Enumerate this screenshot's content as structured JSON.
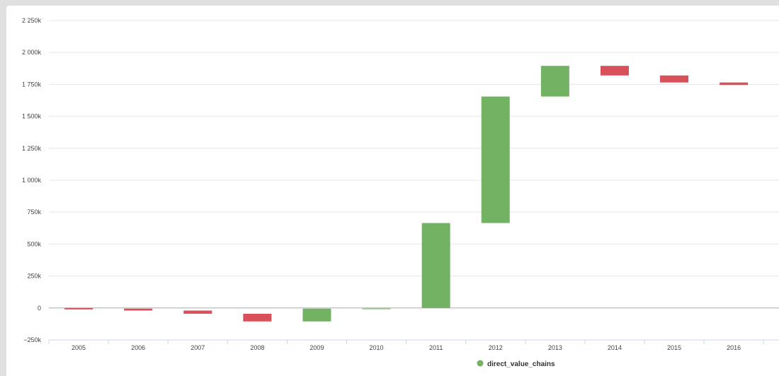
{
  "chart_data": {
    "type": "bar",
    "subtype": "waterfall",
    "categories": [
      "2005",
      "2006",
      "2007",
      "2008",
      "2009",
      "2010",
      "2011",
      "2012",
      "2013",
      "2014",
      "2015",
      "2016"
    ],
    "series": [
      {
        "name": "direct_value_chains",
        "values": [
          -5,
          -15,
          -25,
          -60,
          100,
          5,
          665,
          990,
          240,
          -75,
          -55,
          -20
        ]
      }
    ],
    "ylim": [
      -250,
      2250
    ],
    "yticks": [
      -250,
      0,
      250,
      500,
      750,
      1000,
      1250,
      1500,
      1750,
      2000,
      2250
    ],
    "ytick_labels": [
      "−250k",
      "0",
      "250k",
      "500k",
      "750k",
      "1 000k",
      "1 250k",
      "1 500k",
      "1 750k",
      "2 000k",
      "2 250k"
    ],
    "grid": true,
    "legend": "bottom-center",
    "colors": {
      "positive": "#73b263",
      "negative": "#d8505a",
      "legend_marker": "#73b263",
      "grid": "#e6e6e6",
      "zero_line": "#aaaaaa",
      "x_axis": "#ccd6eb"
    }
  }
}
